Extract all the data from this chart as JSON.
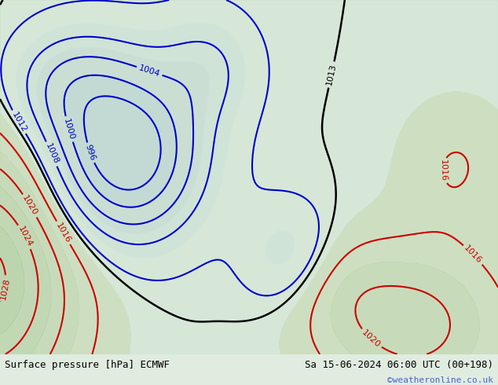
{
  "title_left": "Surface pressure [hPa] ECMWF",
  "title_right": "Sa 15-06-2024 06:00 UTC (00+198)",
  "watermark": "©weatheronline.co.uk",
  "bg_color": "#d0e8c0",
  "land_color": "#c8dca8",
  "sea_color": "#d8ecd8",
  "fig_bg": "#e8f4e8",
  "isobar_color_normal": "#cc0000",
  "isobar_color_low": "#0000cc",
  "isobar_color_black": "#000000",
  "label_fontsize": 9,
  "title_fontsize": 10,
  "watermark_color": "#4466cc",
  "footer_bg": "#e8e8e8"
}
